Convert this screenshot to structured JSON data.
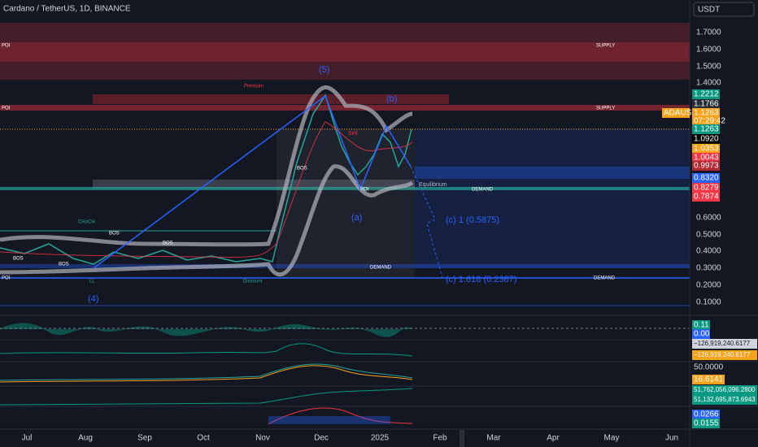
{
  "header": {
    "symbol": "Cardano / TetherUS, 1D, BINANCE",
    "currency": "USDT"
  },
  "price_axis": [
    "1.7000",
    "1.6000",
    "1.5000",
    "1.4000",
    "0.6000",
    "0.5000",
    "0.4000",
    "0.3000",
    "0.2000",
    "0.1000"
  ],
  "price_badges": [
    "1.2212",
    "1.1766",
    "ADAUSDT",
    "1.1263",
    "07:29:42",
    "1.1263",
    "1.0920",
    "1.0353",
    "1.0043",
    "0.9973",
    "0.8320",
    "0.8279",
    "0.7874"
  ],
  "indicator_badges": [
    "0.11",
    "0.00",
    "−126,919,240.6177",
    "−126,919,240.6177",
    "50.0000",
    "16.6141",
    "51,762,056,096.2800",
    "51,132,695,873.6943",
    "0.0266",
    "0.0155"
  ],
  "time_axis": [
    "Jul",
    "Aug",
    "Sep",
    "Oct",
    "Nov",
    "Dec",
    "2025",
    "Feb",
    "Mar",
    "Apr",
    "May",
    "Jun"
  ],
  "annotations": [
    "POI",
    "SUPPLY",
    "(5)",
    "Premium",
    "(b)",
    "POI",
    "SUPPLY",
    "BOS",
    "Equilibrium",
    "DEMAND",
    "POI",
    "(a)",
    "(c) 1 (0.5875)",
    "CHoCH",
    "BOS",
    "BOS",
    "BOS",
    "BOS",
    "DEMAND",
    "(c) 1.618 (0.2387)",
    "POI",
    "DEMAND",
    "Discount",
    "LL",
    "(4)",
    "Sell"
  ]
}
